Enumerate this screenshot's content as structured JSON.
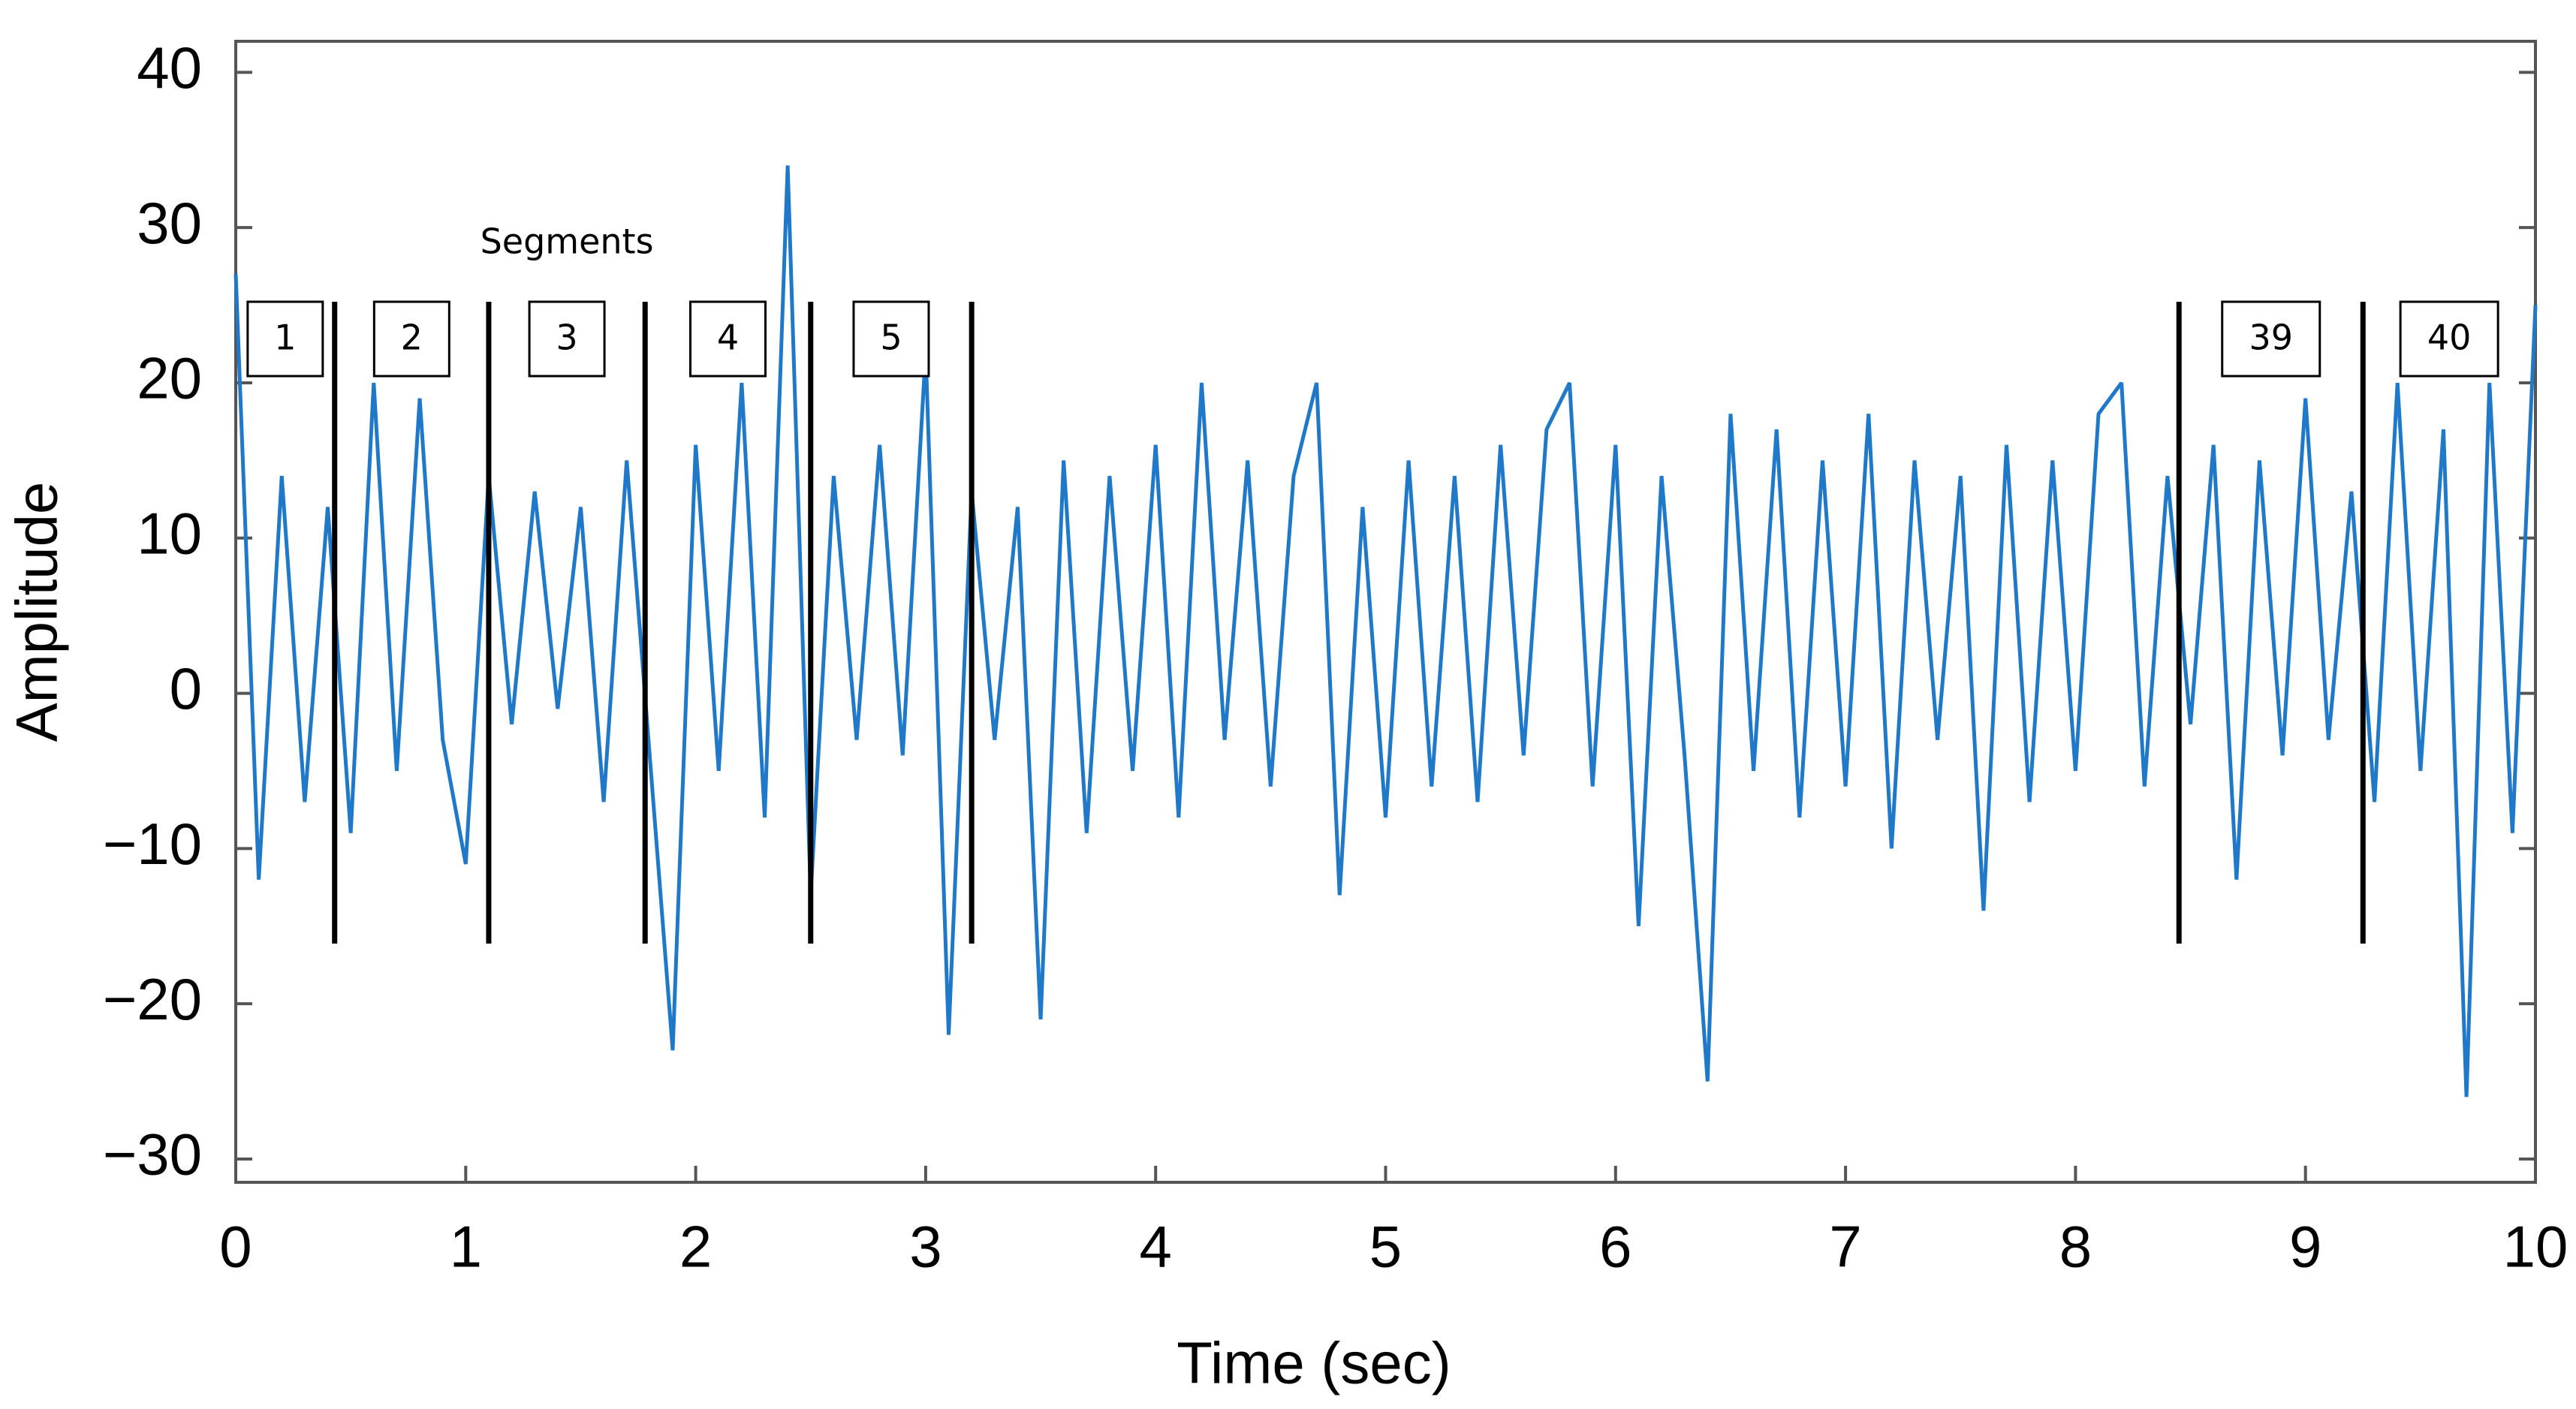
{
  "chart_data": {
    "type": "line",
    "xlabel": "Time (sec)",
    "ylabel": "Amplitude",
    "annotation": "Segments",
    "x": [
      0,
      0.1,
      0.2,
      0.3,
      0.4,
      0.5,
      0.6,
      0.7,
      0.8,
      0.9,
      1,
      1.1,
      1.2,
      1.3,
      1.4,
      1.5,
      1.6,
      1.7,
      1.8,
      1.9,
      2,
      2.1,
      2.2,
      2.3,
      2.4,
      2.5,
      2.6,
      2.7,
      2.8,
      2.9,
      3,
      3.1,
      3.2,
      3.3,
      3.4,
      3.5,
      3.6,
      3.7,
      3.8,
      3.9,
      4,
      4.1,
      4.2,
      4.3,
      4.4,
      4.5,
      4.6,
      4.7,
      4.8,
      4.9,
      5,
      5.1,
      5.2,
      5.3,
      5.4,
      5.5,
      5.6,
      5.7,
      5.8,
      5.9,
      6,
      6.1,
      6.2,
      6.3,
      6.4,
      6.5,
      6.6,
      6.7,
      6.8,
      6.9,
      7,
      7.1,
      7.2,
      7.3,
      7.4,
      7.5,
      7.6,
      7.7,
      7.8,
      7.9,
      8,
      8.1,
      8.2,
      8.3,
      8.4,
      8.5,
      8.6,
      8.7,
      8.8,
      8.9,
      9,
      9.1,
      9.2,
      9.3,
      9.4,
      9.5,
      9.6,
      9.7,
      9.8,
      9.9,
      10
    ],
    "series": [
      {
        "color": "#1f78c8",
        "values": [
          27,
          -12,
          14,
          -7,
          12,
          -9,
          20,
          -5,
          19,
          -3,
          -11,
          14,
          -2,
          13,
          -1,
          12,
          -7,
          15,
          -4,
          -23,
          16,
          -5,
          20,
          -8,
          34,
          -13,
          14,
          -3,
          16,
          -4,
          22,
          -22,
          13,
          -3,
          12,
          -21,
          15,
          -9,
          14,
          -5,
          16,
          -8,
          20,
          -3,
          15,
          -6,
          14,
          20,
          -13,
          12,
          -8,
          15,
          -6,
          14,
          -7,
          16,
          -4,
          17,
          20,
          -6,
          16,
          -15,
          14,
          -4,
          -25,
          18,
          -5,
          17,
          -8,
          15,
          -6,
          18,
          -10,
          15,
          -3,
          14,
          -14,
          16,
          -7,
          15,
          -5,
          18,
          20,
          -6,
          14,
          -2,
          16,
          -12,
          15,
          -4,
          19,
          -3,
          13,
          -7,
          20,
          -5,
          17,
          -26,
          20,
          -9,
          25
        ]
      }
    ],
    "segments": [
      {
        "label": "1",
        "start": 0,
        "end": 0.43
      },
      {
        "label": "2",
        "start": 0.43,
        "end": 1.1
      },
      {
        "label": "3",
        "start": 1.1,
        "end": 1.78
      },
      {
        "label": "4",
        "start": 1.78,
        "end": 2.5
      },
      {
        "label": "5",
        "start": 2.5,
        "end": 3.2
      },
      {
        "label": "39",
        "start": 8.45,
        "end": 9.25
      },
      {
        "label": "40",
        "start": 9.25,
        "end": 10
      }
    ],
    "xlim": [
      0,
      10
    ],
    "xticks": [
      0,
      1,
      2,
      3,
      4,
      5,
      6,
      7,
      8,
      9,
      10
    ],
    "ylim": [
      -31.5,
      42
    ],
    "yticks": [
      {
        "value": -30,
        "label": "−30"
      },
      {
        "value": -20,
        "label": "−20"
      },
      {
        "value": -10,
        "label": "−10"
      },
      0,
      10,
      20,
      30,
      40
    ],
    "grid": false
  }
}
